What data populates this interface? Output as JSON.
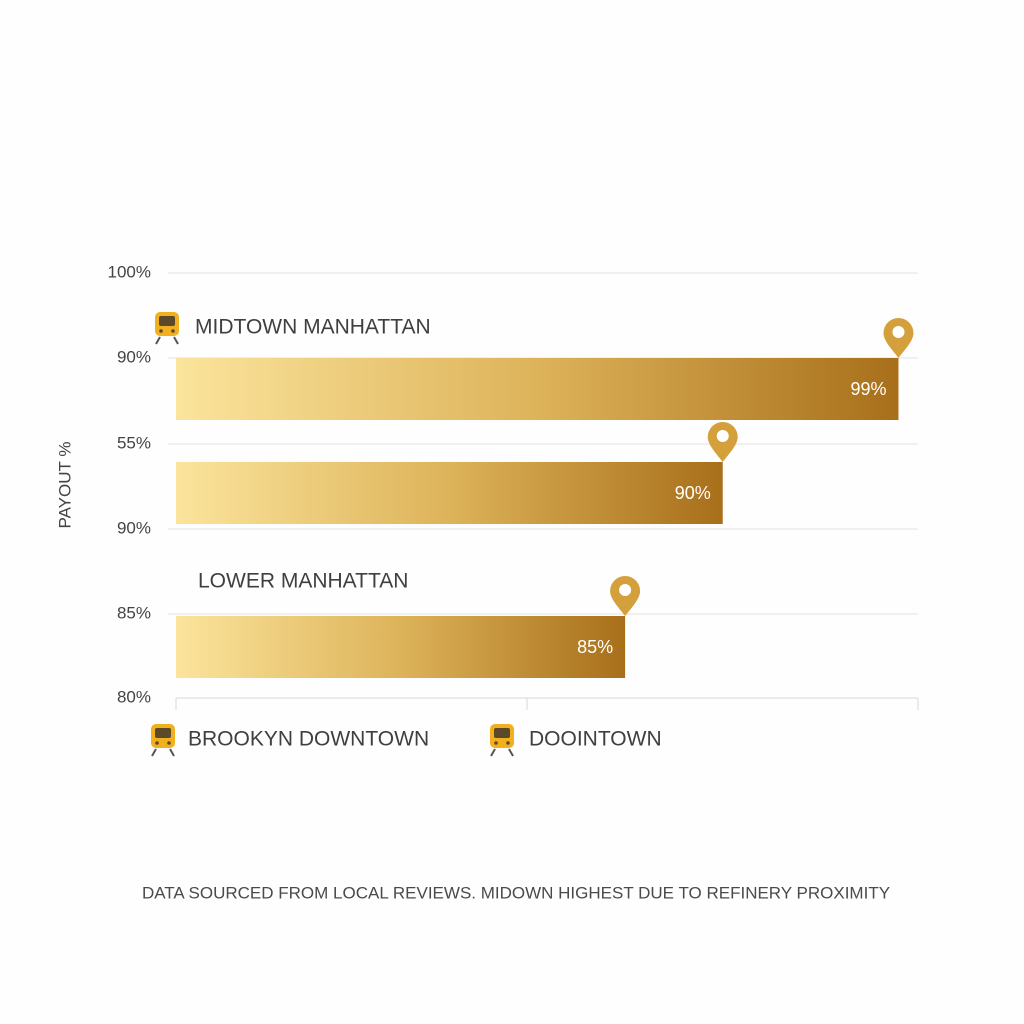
{
  "chart_data": {
    "type": "bar",
    "orientation": "horizontal",
    "y_axis_title": "PAYOUT %",
    "row_labels": [
      "100%",
      "90%",
      "55%",
      "90%",
      "85%",
      "80%"
    ],
    "categories": [
      "MIDTOWN MANHATTAN",
      null,
      "LOWER MANHATTAN"
    ],
    "values": [
      99,
      90,
      85
    ],
    "value_labels": [
      "99%",
      "90%",
      "85%"
    ],
    "xlim": [
      62,
      100
    ],
    "legend": [
      "BROOKYN DOWNTOWN",
      "DOOINTOWN"
    ],
    "colors": [
      "#fbe49c",
      "#ddb35a",
      "#a86f1a"
    ],
    "pin_color": "#d4a03c",
    "grid": true,
    "footnote": "DATA SOURCED FROM LOCAL REVIEWS. MIDOWN HIGHEST DUE TO REFINERY PROXIMITY"
  }
}
